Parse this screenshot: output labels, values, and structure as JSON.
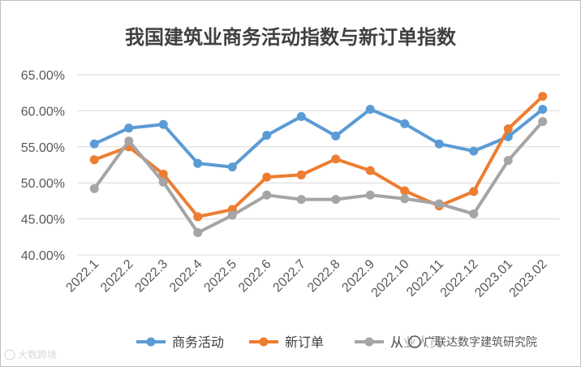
{
  "chart_data": {
    "type": "line",
    "title": "我国建筑业商务活动指数与新订单指数",
    "xlabel": "",
    "ylabel": "",
    "categories": [
      "2022.1",
      "2022.2",
      "2022.3",
      "2022.4",
      "2022.5",
      "2022.6",
      "2022.7",
      "2022.8",
      "2022.9",
      "2022.10",
      "2022.11",
      "2022.12",
      "2023.01",
      "2023.02"
    ],
    "y_ticks": [
      "40.00%",
      "45.00%",
      "50.00%",
      "55.00%",
      "60.00%",
      "65.00%"
    ],
    "ylim": [
      40,
      65
    ],
    "grid": true,
    "legend_position": "bottom",
    "series": [
      {
        "name": "商务活动",
        "color": "#5B9BD5",
        "values": [
          55.4,
          57.6,
          58.1,
          52.7,
          52.2,
          56.6,
          59.2,
          56.5,
          60.2,
          58.2,
          55.4,
          54.4,
          56.4,
          60.2
        ]
      },
      {
        "name": "新订单",
        "color": "#ED7D31",
        "values": [
          53.2,
          55.0,
          51.2,
          45.3,
          46.3,
          50.8,
          51.1,
          53.3,
          51.7,
          48.9,
          46.8,
          48.8,
          57.5,
          62.0
        ]
      },
      {
        "name": "从业人员",
        "color": "#A5A5A5",
        "values": [
          49.2,
          55.8,
          50.1,
          43.1,
          45.5,
          48.3,
          47.7,
          47.7,
          48.3,
          47.8,
          47.1,
          45.7,
          53.1,
          58.5
        ]
      }
    ]
  },
  "legend_text": [
    "商务活动",
    "新订单",
    "从业人员"
  ],
  "watermark": {
    "left_text": "大数跨境",
    "right_text": "广联达数字建筑研究院"
  },
  "colors": {
    "grid": "#d9d9d9",
    "axis": "#d9d9d9"
  }
}
